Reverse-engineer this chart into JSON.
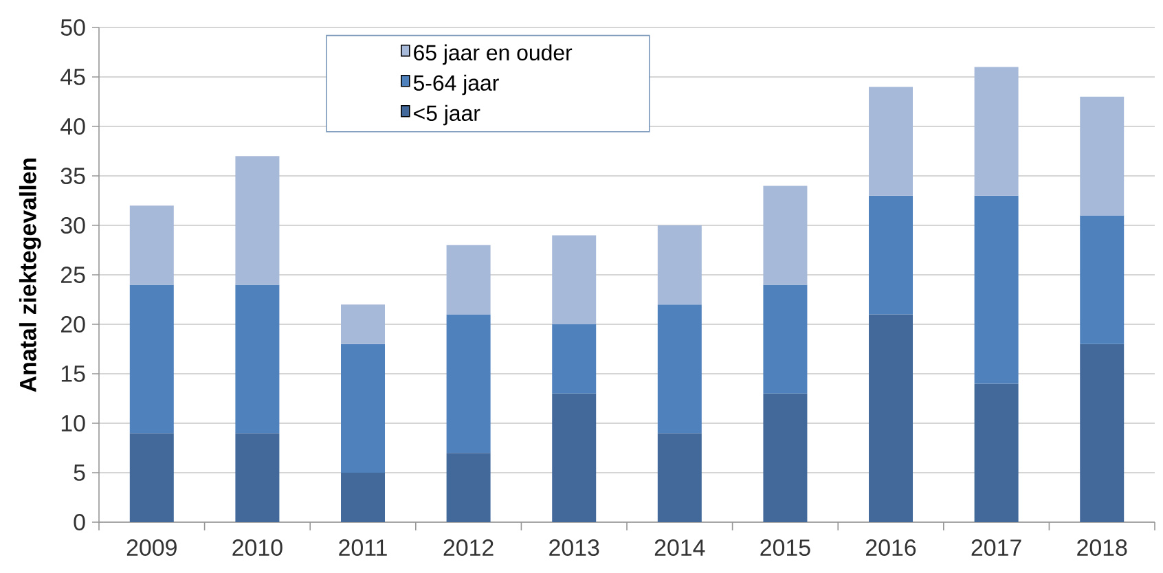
{
  "chart_data": {
    "type": "bar",
    "stacked": true,
    "ylabel": "Anatal ziektegevallen",
    "categories": [
      "2009",
      "2010",
      "2011",
      "2012",
      "2013",
      "2014",
      "2015",
      "2016",
      "2017",
      "2018"
    ],
    "series": [
      {
        "name": "<5 jaar",
        "color": "#43699b",
        "values": [
          9,
          9,
          5,
          7,
          13,
          9,
          13,
          21,
          14,
          18
        ]
      },
      {
        "name": "5-64 jaar",
        "color": "#4f81bd",
        "values": [
          15,
          15,
          13,
          14,
          7,
          13,
          11,
          12,
          19,
          13
        ]
      },
      {
        "name": "65 jaar en ouder",
        "color": "#a7b9d8",
        "values": [
          8,
          13,
          4,
          7,
          9,
          8,
          10,
          11,
          13,
          12
        ]
      }
    ],
    "ylim": [
      0,
      50
    ],
    "yticks": [
      0,
      5,
      10,
      15,
      20,
      25,
      30,
      35,
      40,
      45,
      50
    ],
    "grid": "y",
    "legend": "top left"
  }
}
